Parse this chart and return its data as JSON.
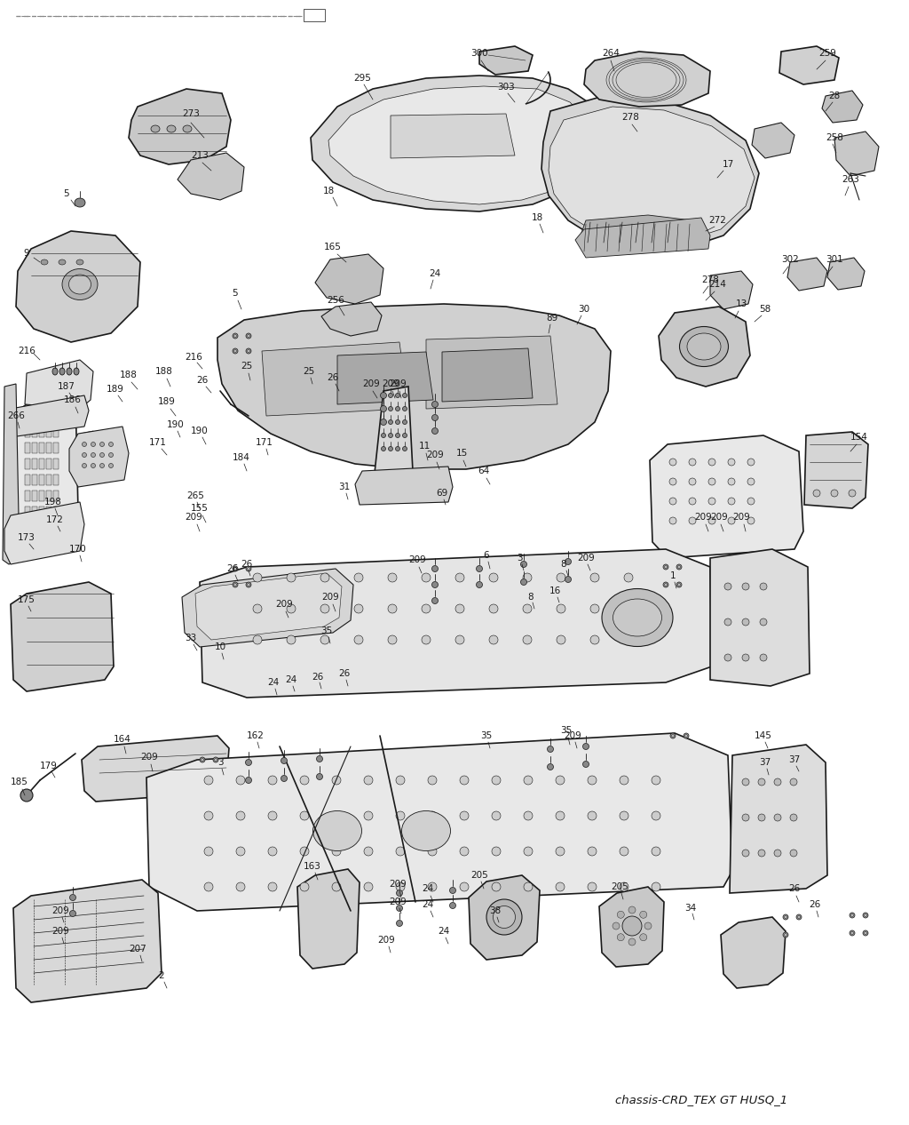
{
  "footer_text": "chassis-CRD_TEX GT HUSQ_1",
  "bg_color": "#ffffff",
  "fig_width": 10.24,
  "fig_height": 12.66,
  "dpi": 100
}
